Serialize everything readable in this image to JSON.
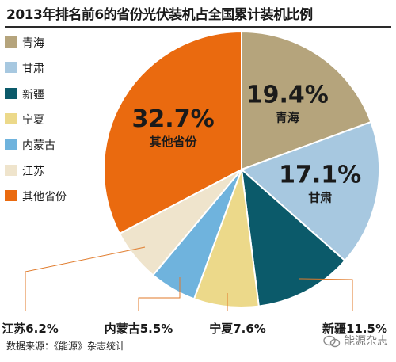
{
  "chart_data": {
    "type": "pie",
    "title": "2013年排名前6的省份光伏装机占全国累计装机比例",
    "legend_position": "left",
    "slices": [
      {
        "label": "青海",
        "value": 19.4,
        "display": "19.4%",
        "color": "#b5a47c"
      },
      {
        "label": "甘肃",
        "value": 17.1,
        "display": "17.1%",
        "color": "#a7c8e0"
      },
      {
        "label": "新疆",
        "value": 11.5,
        "display": "新疆11.5%",
        "color": "#0b5a6a"
      },
      {
        "label": "宁夏",
        "value": 7.6,
        "display": "宁夏7.6%",
        "color": "#ecd98a"
      },
      {
        "label": "内蒙古",
        "value": 5.5,
        "display": "内蒙古5.5%",
        "color": "#6fb3dd"
      },
      {
        "label": "江苏",
        "value": 6.2,
        "display": "江苏6.2%",
        "color": "#efe4cc"
      },
      {
        "label": "其他省份",
        "value": 32.7,
        "display": "32.7%",
        "color": "#ea6a0f"
      }
    ]
  },
  "footer": {
    "source": "数据来源：《能源》杂志统计",
    "brand": "能源杂志"
  }
}
